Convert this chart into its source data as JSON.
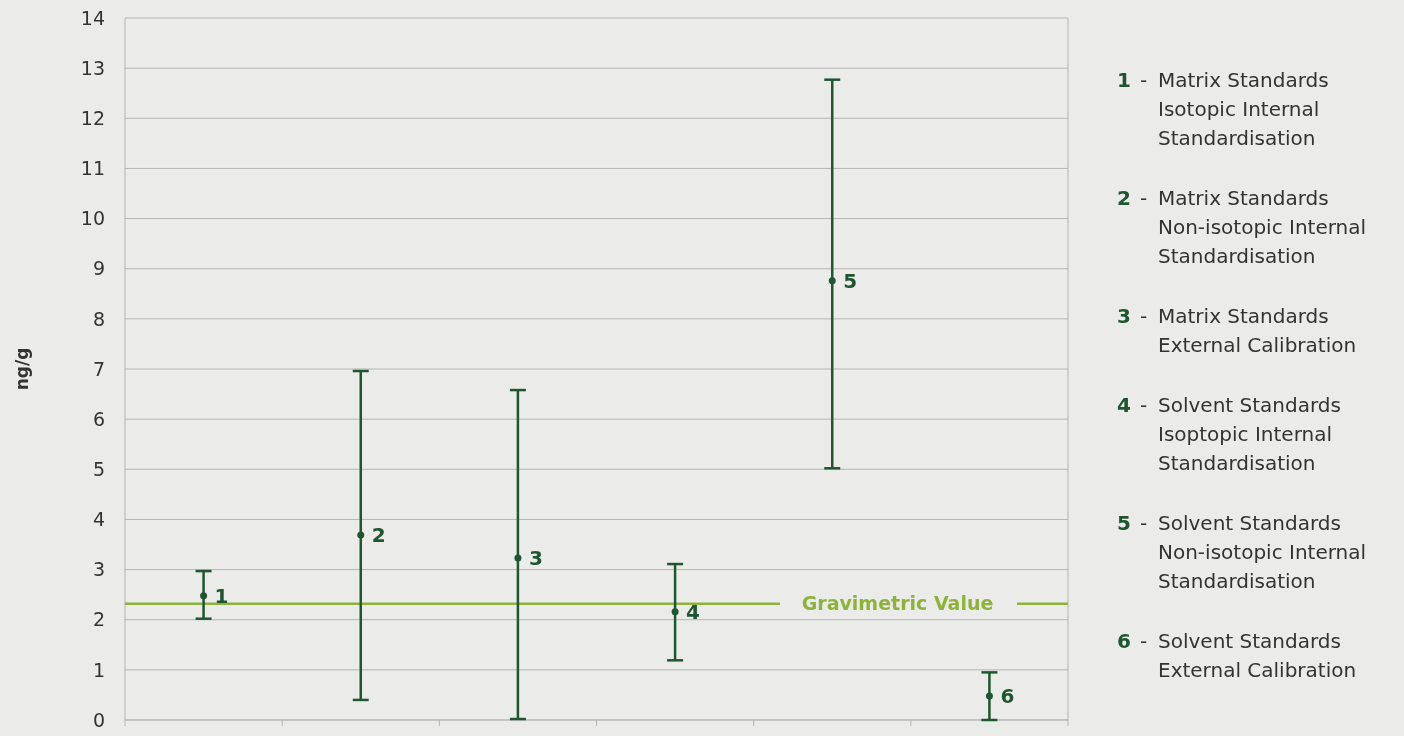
{
  "chart_data": {
    "type": "scatter",
    "ylabel": "ng/g",
    "categories": [
      null,
      null,
      null,
      null,
      null,
      null
    ],
    "series": [
      {
        "name": "1",
        "color": "#1e5631",
        "values": [
          2.48,
          null,
          null,
          null,
          null,
          null
        ],
        "errors": [
          [
            2.02,
            2.97
          ],
          null,
          null,
          null,
          null,
          null
        ]
      },
      {
        "name": "2",
        "color": "#1e5631",
        "values": [
          null,
          3.69,
          null,
          null,
          null,
          null
        ],
        "errors": [
          null,
          [
            0.4,
            6.96
          ],
          null,
          null,
          null,
          null
        ]
      },
      {
        "name": "3",
        "color": "#1e5631",
        "values": [
          null,
          null,
          3.23,
          null,
          null,
          null
        ],
        "errors": [
          null,
          null,
          [
            0.02,
            6.58
          ],
          null,
          null,
          null
        ]
      },
      {
        "name": "4",
        "color": "#1e5631",
        "values": [
          null,
          null,
          null,
          2.16,
          null,
          null
        ],
        "errors": [
          null,
          null,
          null,
          [
            1.19,
            3.11
          ],
          null,
          null
        ]
      },
      {
        "name": "5",
        "color": "#1e5631",
        "values": [
          null,
          null,
          null,
          null,
          8.76,
          null
        ],
        "errors": [
          null,
          null,
          null,
          null,
          [
            5.02,
            12.77
          ],
          null
        ]
      },
      {
        "name": "6",
        "color": "#1e5631",
        "values": [
          null,
          null,
          null,
          null,
          null,
          0.48
        ],
        "errors": [
          null,
          null,
          null,
          null,
          null,
          [
            0,
            0.95
          ]
        ]
      }
    ],
    "ylim": [
      0,
      14
    ],
    "yticks": [
      0,
      1,
      2,
      3,
      4,
      5,
      6,
      7,
      8,
      9,
      10,
      11,
      12,
      13,
      14
    ],
    "grid": "y",
    "marker": "circle",
    "legend": "right",
    "ref_lines": [
      {
        "axis": "y",
        "value": 2.32,
        "label": "Gravimetric Value",
        "color": "#8db33a"
      }
    ],
    "annotations": [
      "1 - Matrix Standards\nIsotopic Internal\nStandardisation",
      "2 - Matrix Standards\nNon-isotopic Internal\nStandardisation",
      "3 - Matrix Standards\nExternal Calibration",
      "4 - Solvent Standards\nIsoptopic Internal\nStandardisation",
      "5 - Solvent Standards\nNon-isotopic Internal\nStandardisation",
      "6 - Solvent Standards\nExternal Calibration"
    ]
  }
}
